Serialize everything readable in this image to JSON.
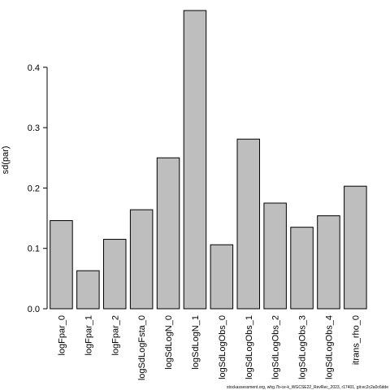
{
  "chart_data": {
    "type": "bar",
    "title": "",
    "xlabel": "",
    "ylabel": "sd(par)",
    "categories": [
      "logFpar_0",
      "logFpar_1",
      "logFpar_2",
      "logSdLogFsta_0",
      "logSdLogN_0",
      "logSdLogN_1",
      "logSdLogObs_0",
      "logSdLogObs_1",
      "logSdLogObs_2",
      "logSdLogObs_3",
      "logSdLogObs_4",
      "itrans_rho_0"
    ],
    "values": [
      0.146,
      0.063,
      0.115,
      0.164,
      0.25,
      0.494,
      0.106,
      0.281,
      0.175,
      0.135,
      0.154,
      0.203
    ],
    "ylim": [
      0,
      0.5
    ],
    "yticks": [
      0.0,
      0.1,
      0.2,
      0.3,
      0.4
    ],
    "ytick_labels": [
      "0.0",
      "0.1",
      "0.2",
      "0.3",
      "0.4"
    ],
    "grid": false,
    "legend": "none",
    "bar_color": "#bebebe",
    "edge_color": "#000000"
  },
  "footer": {
    "caption": "stockassessment.org, whg.7b-ce-k_WGCSE22_RevRec_2023, r17401, git:ec2c2a0c6dde"
  }
}
